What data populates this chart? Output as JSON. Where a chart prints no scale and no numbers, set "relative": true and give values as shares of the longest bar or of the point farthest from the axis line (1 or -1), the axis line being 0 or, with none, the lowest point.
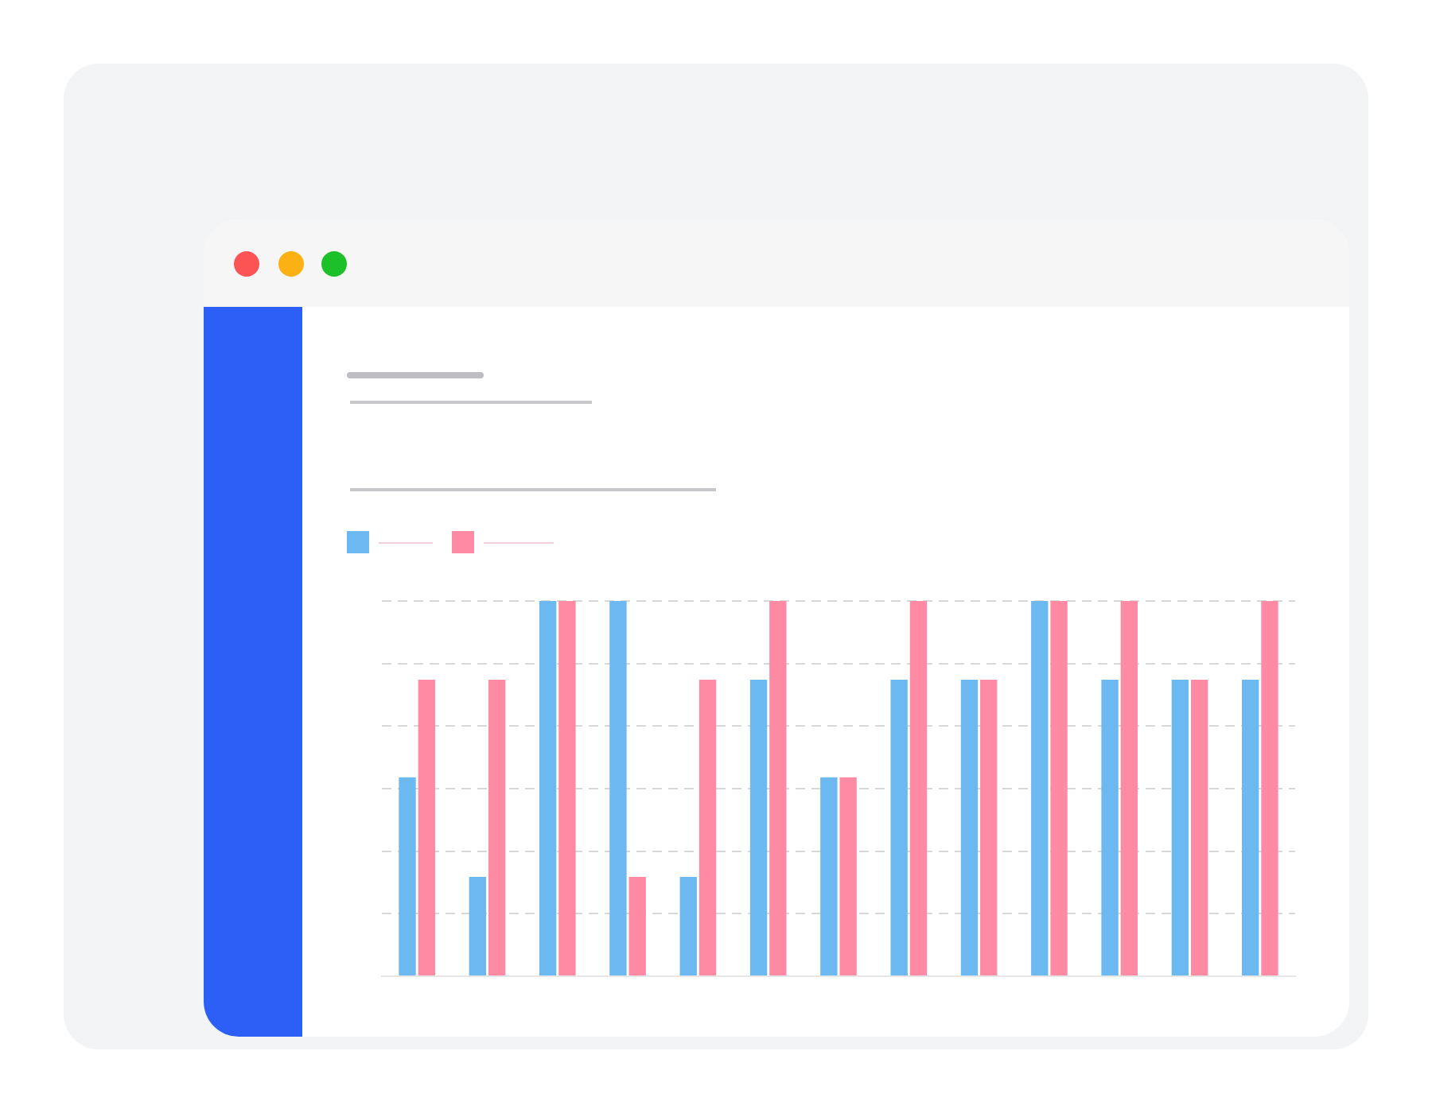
{
  "chart_data": {
    "type": "bar",
    "relative": true,
    "categories": [
      null,
      null,
      null,
      null,
      null,
      null,
      null,
      null,
      null,
      null,
      null,
      null,
      null
    ],
    "series": [
      {
        "color": "#6cb8f0",
        "values": [
          0.53,
          0.265,
          1,
          1,
          0.265,
          0.79,
          0.53,
          0.79,
          0.79,
          1,
          0.79,
          0.79,
          0.79
        ]
      },
      {
        "color": "#ff8aa4",
        "values": [
          0.79,
          0.79,
          1,
          0.265,
          0.79,
          1,
          0.53,
          1,
          0.79,
          1,
          1,
          0.79,
          1
        ]
      }
    ],
    "grid": "y"
  }
}
